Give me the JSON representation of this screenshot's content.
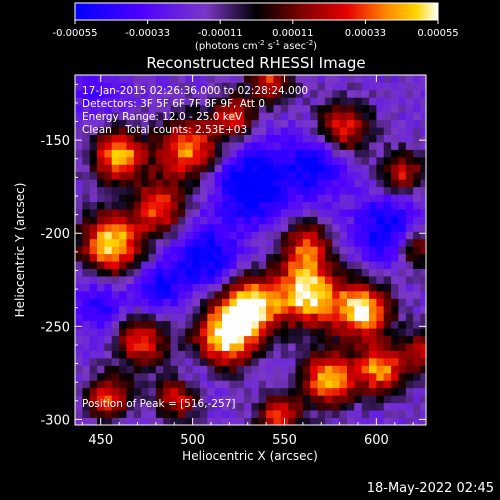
{
  "colorbar": {
    "ticks": [
      "-0.00055",
      "-0.00033",
      "-0.00011",
      "0.00011",
      "0.00033",
      "0.00055"
    ],
    "units_main": "(photons cm",
    "units_exp1": "-2",
    "units_mid1": " s",
    "units_exp2": "-1",
    "units_mid2": " asec",
    "units_exp3": "-2",
    "units_end": ")",
    "range": [
      -0.00055,
      0.00055
    ]
  },
  "chart_data": {
    "type": "heatmap",
    "title": "Reconstructed RHESSI Image",
    "xlabel": "Heliocentric X (arcsec)",
    "ylabel": "Heliocentric Y (arcsec)",
    "xlim": [
      436,
      627
    ],
    "ylim": [
      -303,
      -115
    ],
    "xticks": [
      450,
      500,
      550,
      600
    ],
    "yticks": [
      -150,
      -200,
      -250,
      -300
    ],
    "annotations": [
      "17-Jan-2015 02:26:36.000 to 02:28:24.000",
      "Detectors: 3F 5F 6F 7F 8F 9F, Att 0",
      "Energy Range: 12.0 - 25.0 keV",
      "Clean    Total counts: 2.53E+03"
    ],
    "peak_label": "Position of Peak = [516,-257]",
    "peak": [
      516,
      -257
    ],
    "blobs": [
      {
        "x": 454,
        "y": -208,
        "amp": 0.95,
        "r": 14
      },
      {
        "x": 458,
        "y": -160,
        "amp": 0.85,
        "r": 12
      },
      {
        "x": 496,
        "y": -157,
        "amp": 0.75,
        "r": 14
      },
      {
        "x": 480,
        "y": -188,
        "amp": 0.6,
        "r": 12
      },
      {
        "x": 520,
        "y": -140,
        "amp": 0.55,
        "r": 10
      },
      {
        "x": 540,
        "y": -120,
        "amp": 0.5,
        "r": 10
      },
      {
        "x": 580,
        "y": -145,
        "amp": 0.6,
        "r": 12
      },
      {
        "x": 560,
        "y": -210,
        "amp": 0.55,
        "r": 12
      },
      {
        "x": 612,
        "y": -170,
        "amp": 0.5,
        "r": 10
      },
      {
        "x": 516,
        "y": -257,
        "amp": 1.0,
        "r": 14
      },
      {
        "x": 530,
        "y": -240,
        "amp": 0.9,
        "r": 13
      },
      {
        "x": 560,
        "y": -235,
        "amp": 0.95,
        "r": 14
      },
      {
        "x": 590,
        "y": -243,
        "amp": 0.95,
        "r": 13
      },
      {
        "x": 572,
        "y": -280,
        "amp": 0.85,
        "r": 12
      },
      {
        "x": 600,
        "y": -275,
        "amp": 0.75,
        "r": 11
      },
      {
        "x": 545,
        "y": -300,
        "amp": 0.6,
        "r": 10
      },
      {
        "x": 470,
        "y": -260,
        "amp": 0.55,
        "r": 12
      },
      {
        "x": 452,
        "y": -290,
        "amp": 0.6,
        "r": 10
      },
      {
        "x": 490,
        "y": -290,
        "amp": 0.5,
        "r": 10
      },
      {
        "x": 620,
        "y": -210,
        "amp": 0.45,
        "r": 10
      },
      {
        "x": 625,
        "y": -265,
        "amp": 0.5,
        "r": 10
      },
      {
        "x": 505,
        "y": -215,
        "amp": -0.7,
        "r": 14
      },
      {
        "x": 530,
        "y": -175,
        "amp": -0.8,
        "r": 18
      },
      {
        "x": 565,
        "y": -165,
        "amp": -0.6,
        "r": 14
      },
      {
        "x": 605,
        "y": -200,
        "amp": -0.7,
        "r": 16
      },
      {
        "x": 448,
        "y": -240,
        "amp": -0.5,
        "r": 12
      },
      {
        "x": 480,
        "y": -230,
        "amp": -0.55,
        "r": 12
      },
      {
        "x": 445,
        "y": -125,
        "amp": -0.3,
        "r": 12
      },
      {
        "x": 500,
        "y": -280,
        "amp": -0.25,
        "r": 10
      }
    ]
  },
  "footer": {
    "date": "18-May-2022 02:45"
  }
}
